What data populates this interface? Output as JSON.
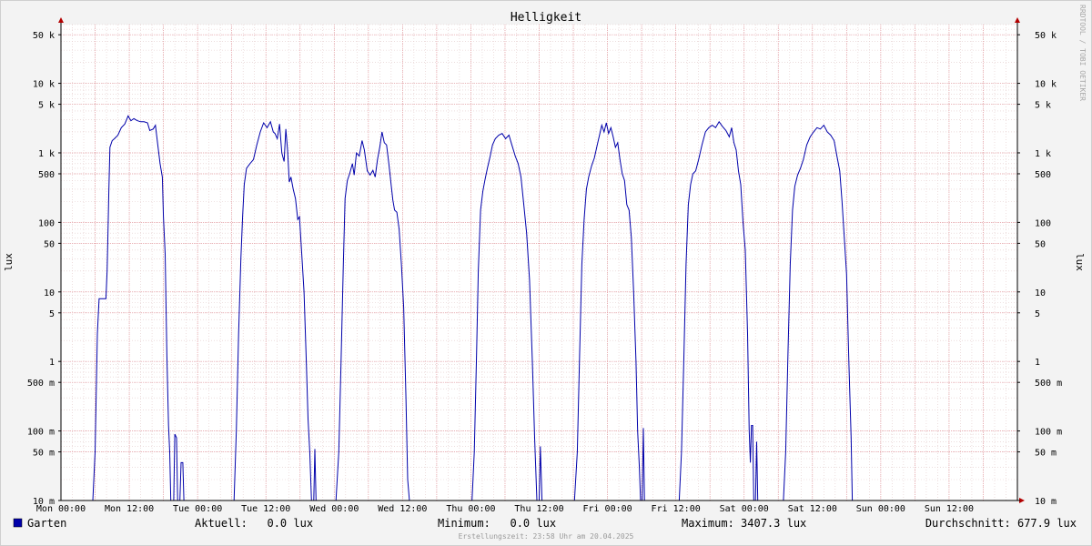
{
  "chart_data": {
    "type": "line",
    "title": "Helligkeit",
    "ylabel": "lux",
    "yscale": "log",
    "ylim": [
      0.01,
      70000
    ],
    "xlim": [
      0,
      168
    ],
    "x_unit": "hours since Mon 00:00",
    "x_ticks": [
      {
        "x": 0,
        "label": "Mon 00:00"
      },
      {
        "x": 12,
        "label": "Mon 12:00"
      },
      {
        "x": 24,
        "label": "Tue 00:00"
      },
      {
        "x": 36,
        "label": "Tue 12:00"
      },
      {
        "x": 48,
        "label": "Wed 00:00"
      },
      {
        "x": 60,
        "label": "Wed 12:00"
      },
      {
        "x": 72,
        "label": "Thu 00:00"
      },
      {
        "x": 84,
        "label": "Thu 12:00"
      },
      {
        "x": 96,
        "label": "Fri 00:00"
      },
      {
        "x": 108,
        "label": "Fri 12:00"
      },
      {
        "x": 120,
        "label": "Sat 00:00"
      },
      {
        "x": 132,
        "label": "Sat 12:00"
      },
      {
        "x": 144,
        "label": "Sun 00:00"
      },
      {
        "x": 156,
        "label": "Sun 12:00"
      }
    ],
    "y_ticks": [
      {
        "value": 0.01,
        "label": "10 m"
      },
      {
        "value": 0.05,
        "label": "50 m"
      },
      {
        "value": 0.1,
        "label": "100 m"
      },
      {
        "value": 0.5,
        "label": "500 m"
      },
      {
        "value": 1,
        "label": "1"
      },
      {
        "value": 5,
        "label": "5"
      },
      {
        "value": 10,
        "label": "10"
      },
      {
        "value": 50,
        "label": "50"
      },
      {
        "value": 100,
        "label": "100"
      },
      {
        "value": 500,
        "label": "500"
      },
      {
        "value": 1000,
        "label": "1 k"
      },
      {
        "value": 5000,
        "label": "5 k"
      },
      {
        "value": 10000,
        "label": "10 k"
      },
      {
        "value": 50000,
        "label": "50 k"
      }
    ],
    "grid": true,
    "series": [
      {
        "name": "Garten",
        "color": "#0000aa",
        "points": [
          [
            0,
            0.01
          ],
          [
            5.6,
            0.01
          ],
          [
            6.0,
            0.05
          ],
          [
            6.4,
            2.5
          ],
          [
            6.7,
            8
          ],
          [
            7.9,
            8
          ],
          [
            8.1,
            20
          ],
          [
            8.3,
            100
          ],
          [
            8.4,
            280
          ],
          [
            8.6,
            1200
          ],
          [
            9.0,
            1500
          ],
          [
            9.4,
            1600
          ],
          [
            10,
            1800
          ],
          [
            10.6,
            2300
          ],
          [
            11.2,
            2600
          ],
          [
            11.8,
            3400
          ],
          [
            12.3,
            2900
          ],
          [
            12.8,
            3100
          ],
          [
            13.4,
            2900
          ],
          [
            14.0,
            2800
          ],
          [
            14.6,
            2800
          ],
          [
            15.2,
            2700
          ],
          [
            15.6,
            2100
          ],
          [
            16.2,
            2200
          ],
          [
            16.6,
            2500
          ],
          [
            17.0,
            1300
          ],
          [
            17.4,
            700
          ],
          [
            17.8,
            450
          ],
          [
            18.0,
            120
          ],
          [
            18.3,
            35
          ],
          [
            18.6,
            1.2
          ],
          [
            18.9,
            0.12
          ],
          [
            19.1,
            0.05
          ],
          [
            19.3,
            0.01
          ],
          [
            19.8,
            0.01
          ],
          [
            20.0,
            0.09
          ],
          [
            20.3,
            0.08
          ],
          [
            20.5,
            0.01
          ],
          [
            20.9,
            0.01
          ],
          [
            21.1,
            0.035
          ],
          [
            21.4,
            0.035
          ],
          [
            21.6,
            0.01
          ],
          [
            30.4,
            0.01
          ],
          [
            30.8,
            0.1
          ],
          [
            31.2,
            2.5
          ],
          [
            31.6,
            30
          ],
          [
            31.9,
            120
          ],
          [
            32.2,
            350
          ],
          [
            32.6,
            600
          ],
          [
            33.2,
            700
          ],
          [
            33.8,
            800
          ],
          [
            34.4,
            1300
          ],
          [
            35.0,
            2000
          ],
          [
            35.6,
            2700
          ],
          [
            36.2,
            2300
          ],
          [
            36.8,
            2800
          ],
          [
            37.3,
            2000
          ],
          [
            37.6,
            1900
          ],
          [
            38.0,
            1600
          ],
          [
            38.4,
            2600
          ],
          [
            38.8,
            1000
          ],
          [
            39.2,
            750
          ],
          [
            39.5,
            2200
          ],
          [
            39.8,
            1100
          ],
          [
            40.1,
            380
          ],
          [
            40.4,
            450
          ],
          [
            40.8,
            300
          ],
          [
            41.2,
            220
          ],
          [
            41.6,
            110
          ],
          [
            41.9,
            120
          ],
          [
            42.3,
            35
          ],
          [
            42.7,
            10
          ],
          [
            43.1,
            1.0
          ],
          [
            43.4,
            0.15
          ],
          [
            43.7,
            0.05
          ],
          [
            44.0,
            0.01
          ],
          [
            44.4,
            0.01
          ],
          [
            44.6,
            0.055
          ],
          [
            44.8,
            0.01
          ],
          [
            48.3,
            0.01
          ],
          [
            48.8,
            0.05
          ],
          [
            49.2,
            1.0
          ],
          [
            49.6,
            25
          ],
          [
            49.9,
            220
          ],
          [
            50.3,
            400
          ],
          [
            50.7,
            500
          ],
          [
            51.2,
            700
          ],
          [
            51.5,
            480
          ],
          [
            51.9,
            1000
          ],
          [
            52.4,
            900
          ],
          [
            52.9,
            1500
          ],
          [
            53.3,
            1100
          ],
          [
            53.8,
            550
          ],
          [
            54.3,
            480
          ],
          [
            54.8,
            560
          ],
          [
            55.2,
            450
          ],
          [
            55.6,
            800
          ],
          [
            56.0,
            1200
          ],
          [
            56.4,
            2000
          ],
          [
            56.8,
            1400
          ],
          [
            57.2,
            1300
          ],
          [
            57.6,
            700
          ],
          [
            58.0,
            350
          ],
          [
            58.3,
            210
          ],
          [
            58.6,
            150
          ],
          [
            59.0,
            140
          ],
          [
            59.4,
            80
          ],
          [
            59.8,
            25
          ],
          [
            60.2,
            6
          ],
          [
            60.6,
            0.3
          ],
          [
            60.9,
            0.02
          ],
          [
            61.2,
            0.01
          ],
          [
            72.2,
            0.01
          ],
          [
            72.6,
            0.05
          ],
          [
            73.0,
            1.3
          ],
          [
            73.3,
            20
          ],
          [
            73.7,
            150
          ],
          [
            74.1,
            280
          ],
          [
            74.5,
            420
          ],
          [
            74.9,
            600
          ],
          [
            75.4,
            900
          ],
          [
            75.8,
            1300
          ],
          [
            76.3,
            1600
          ],
          [
            76.9,
            1800
          ],
          [
            77.5,
            1900
          ],
          [
            78.1,
            1600
          ],
          [
            78.7,
            1800
          ],
          [
            79.2,
            1300
          ],
          [
            79.8,
            900
          ],
          [
            80.3,
            700
          ],
          [
            80.8,
            450
          ],
          [
            81.3,
            180
          ],
          [
            81.8,
            70
          ],
          [
            82.3,
            15
          ],
          [
            82.8,
            1.0
          ],
          [
            83.2,
            0.08
          ],
          [
            83.6,
            0.01
          ],
          [
            84.0,
            0.01
          ],
          [
            84.2,
            0.06
          ],
          [
            84.5,
            0.01
          ],
          [
            90.2,
            0.01
          ],
          [
            90.7,
            0.05
          ],
          [
            91.1,
            1.2
          ],
          [
            91.5,
            25
          ],
          [
            91.9,
            110
          ],
          [
            92.3,
            300
          ],
          [
            92.7,
            450
          ],
          [
            93.2,
            650
          ],
          [
            93.7,
            850
          ],
          [
            94.2,
            1300
          ],
          [
            94.6,
            1800
          ],
          [
            95.0,
            2500
          ],
          [
            95.4,
            2000
          ],
          [
            95.8,
            2700
          ],
          [
            96.2,
            1900
          ],
          [
            96.6,
            2300
          ],
          [
            97.0,
            1700
          ],
          [
            97.4,
            1200
          ],
          [
            97.8,
            1400
          ],
          [
            98.2,
            800
          ],
          [
            98.6,
            500
          ],
          [
            99.0,
            400
          ],
          [
            99.4,
            180
          ],
          [
            99.8,
            150
          ],
          [
            100.2,
            60
          ],
          [
            100.6,
            10
          ],
          [
            101.0,
            1.0
          ],
          [
            101.3,
            0.1
          ],
          [
            101.6,
            0.03
          ],
          [
            101.8,
            0.01
          ],
          [
            102.1,
            0.01
          ],
          [
            102.3,
            0.11
          ],
          [
            102.5,
            0.01
          ],
          [
            108.6,
            0.01
          ],
          [
            109.0,
            0.05
          ],
          [
            109.4,
            1.0
          ],
          [
            109.8,
            25
          ],
          [
            110.2,
            180
          ],
          [
            110.6,
            350
          ],
          [
            111.0,
            500
          ],
          [
            111.5,
            550
          ],
          [
            112.0,
            800
          ],
          [
            112.6,
            1300
          ],
          [
            113.2,
            2000
          ],
          [
            113.8,
            2300
          ],
          [
            114.4,
            2500
          ],
          [
            115.0,
            2300
          ],
          [
            115.6,
            2800
          ],
          [
            116.2,
            2400
          ],
          [
            116.8,
            2100
          ],
          [
            117.4,
            1700
          ],
          [
            117.8,
            2300
          ],
          [
            118.2,
            1400
          ],
          [
            118.6,
            1100
          ],
          [
            119.0,
            550
          ],
          [
            119.4,
            350
          ],
          [
            119.8,
            100
          ],
          [
            120.2,
            40
          ],
          [
            120.6,
            2.5
          ],
          [
            120.9,
            0.1
          ],
          [
            121.1,
            0.035
          ],
          [
            121.3,
            0.12
          ],
          [
            121.5,
            0.12
          ],
          [
            121.7,
            0.01
          ],
          [
            122.0,
            0.01
          ],
          [
            122.2,
            0.07
          ],
          [
            122.4,
            0.01
          ],
          [
            126.9,
            0.01
          ],
          [
            127.3,
            0.05
          ],
          [
            127.7,
            1.3
          ],
          [
            128.1,
            25
          ],
          [
            128.5,
            150
          ],
          [
            128.9,
            330
          ],
          [
            129.4,
            480
          ],
          [
            129.9,
            600
          ],
          [
            130.4,
            800
          ],
          [
            131.0,
            1300
          ],
          [
            131.6,
            1700
          ],
          [
            132.2,
            2000
          ],
          [
            132.8,
            2300
          ],
          [
            133.4,
            2200
          ],
          [
            134.0,
            2500
          ],
          [
            134.6,
            2000
          ],
          [
            135.2,
            1800
          ],
          [
            135.8,
            1500
          ],
          [
            136.3,
            900
          ],
          [
            136.8,
            550
          ],
          [
            137.2,
            200
          ],
          [
            137.6,
            60
          ],
          [
            138.0,
            18
          ],
          [
            138.4,
            1.0
          ],
          [
            138.8,
            0.08
          ],
          [
            139.0,
            0.01
          ],
          [
            5.6,
            0.01
          ]
        ]
      }
    ],
    "watermark": "RRDTOOL / TOBI OETIKER"
  },
  "legend": {
    "series_label": "Garten",
    "swatch_color": "#0000aa",
    "aktuell": "Aktuell:   0.0 lux",
    "minimum": "Minimum:   0.0 lux",
    "maximum": "Maximum: 3407.3 lux",
    "durchschnitt": "Durchschnitt: 677.9 lux"
  },
  "footer": "Erstellungszeit: 23:58 Uhr am 20.04.2025"
}
